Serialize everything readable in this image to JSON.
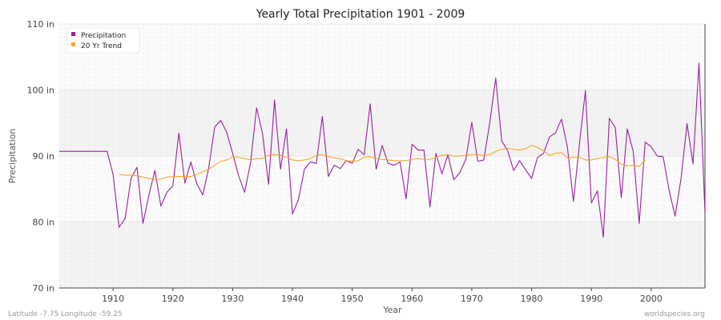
{
  "chart_data": {
    "type": "line",
    "title": "Yearly Total Precipitation 1901 - 2009",
    "xlabel": "Year",
    "ylabel": "Precipitation",
    "xlim": [
      1901,
      2009
    ],
    "ylim": [
      70,
      110
    ],
    "yticks": [
      {
        "value": 70,
        "label": "70 in"
      },
      {
        "value": 80,
        "label": "80 in"
      },
      {
        "value": 90,
        "label": "90 in"
      },
      {
        "value": 100,
        "label": "100 in"
      },
      {
        "value": 110,
        "label": "110 in"
      }
    ],
    "xticks": [
      {
        "value": 1910,
        "label": "1910"
      },
      {
        "value": 1920,
        "label": "1920"
      },
      {
        "value": 1930,
        "label": "1930"
      },
      {
        "value": 1940,
        "label": "1940"
      },
      {
        "value": 1950,
        "label": "1950"
      },
      {
        "value": 1960,
        "label": "1960"
      },
      {
        "value": 1970,
        "label": "1970"
      },
      {
        "value": 1980,
        "label": "1980"
      },
      {
        "value": 1990,
        "label": "1990"
      },
      {
        "value": 2000,
        "label": "2000"
      }
    ],
    "grid": true,
    "legend_position": "top-left",
    "series": [
      {
        "name": "Precipitation",
        "color": "#9b1fa0",
        "x": [
          1901,
          1902,
          1903,
          1904,
          1905,
          1906,
          1907,
          1908,
          1909,
          1910,
          1911,
          1912,
          1913,
          1914,
          1915,
          1916,
          1917,
          1918,
          1919,
          1920,
          1921,
          1922,
          1923,
          1924,
          1925,
          1926,
          1927,
          1928,
          1929,
          1930,
          1931,
          1932,
          1933,
          1934,
          1935,
          1936,
          1937,
          1938,
          1939,
          1940,
          1941,
          1942,
          1943,
          1944,
          1945,
          1946,
          1947,
          1948,
          1949,
          1950,
          1951,
          1952,
          1953,
          1954,
          1955,
          1956,
          1957,
          1958,
          1959,
          1960,
          1961,
          1962,
          1963,
          1964,
          1965,
          1966,
          1967,
          1968,
          1969,
          1970,
          1971,
          1972,
          1973,
          1974,
          1975,
          1976,
          1977,
          1978,
          1979,
          1980,
          1981,
          1982,
          1983,
          1984,
          1985,
          1986,
          1987,
          1988,
          1989,
          1990,
          1991,
          1992,
          1993,
          1994,
          1995,
          1996,
          1997,
          1998,
          1999,
          2000,
          2001,
          2002,
          2003,
          2004,
          2005,
          2006,
          2007,
          2008,
          2009
        ],
        "values": [
          90.7,
          90.7,
          90.7,
          90.7,
          90.7,
          90.7,
          90.7,
          90.7,
          90.7,
          87.2,
          79.2,
          80.5,
          86.6,
          88.3,
          79.8,
          84.1,
          87.8,
          82.4,
          84.5,
          85.5,
          93.5,
          85.9,
          89.1,
          85.8,
          84.1,
          88.2,
          94.4,
          95.4,
          93.6,
          90.4,
          87.0,
          84.5,
          89.0,
          97.3,
          93.4,
          85.7,
          98.5,
          88.0,
          94.1,
          81.2,
          83.4,
          88.0,
          89.1,
          88.9,
          96.0,
          86.9,
          88.6,
          88.1,
          89.3,
          88.9,
          91.0,
          90.2,
          97.9,
          88.0,
          91.6,
          88.9,
          88.6,
          89.1,
          83.5,
          91.8,
          90.9,
          90.9,
          82.3,
          90.4,
          87.3,
          90.2,
          86.4,
          87.5,
          89.5,
          95.1,
          89.2,
          89.4,
          95.0,
          101.8,
          92.3,
          90.8,
          87.8,
          89.3,
          87.9,
          86.6,
          89.8,
          90.4,
          92.9,
          93.5,
          95.6,
          91.3,
          83.1,
          91.8,
          99.9,
          82.9,
          84.7,
          77.7,
          95.7,
          94.3,
          83.7,
          94.1,
          90.7,
          79.8,
          92.1,
          91.4,
          90.0,
          89.9,
          84.8,
          80.9,
          86.6,
          94.9,
          88.8,
          104.1,
          81.4
        ]
      },
      {
        "name": "20 Yr Trend",
        "color": "#f5a623",
        "x": [
          1911,
          1912,
          1913,
          1914,
          1915,
          1916,
          1917,
          1918,
          1919,
          1920,
          1921,
          1922,
          1923,
          1924,
          1925,
          1926,
          1927,
          1928,
          1929,
          1930,
          1931,
          1932,
          1933,
          1934,
          1935,
          1936,
          1937,
          1938,
          1939,
          1940,
          1941,
          1942,
          1943,
          1944,
          1945,
          1946,
          1947,
          1948,
          1949,
          1950,
          1951,
          1952,
          1953,
          1954,
          1955,
          1956,
          1957,
          1958,
          1959,
          1960,
          1961,
          1962,
          1963,
          1964,
          1965,
          1966,
          1967,
          1968,
          1969,
          1970,
          1971,
          1972,
          1973,
          1974,
          1975,
          1976,
          1977,
          1978,
          1979,
          1980,
          1981,
          1982,
          1983,
          1984,
          1985,
          1986,
          1987,
          1988,
          1989,
          1990,
          1991,
          1992,
          1993,
          1994,
          1995,
          1996,
          1997,
          1998,
          1999
        ],
        "values": [
          87.2,
          87.1,
          87.1,
          87.0,
          86.8,
          86.6,
          86.4,
          86.5,
          86.8,
          86.9,
          86.9,
          86.9,
          86.9,
          87.2,
          87.6,
          88.0,
          88.6,
          89.2,
          89.4,
          89.9,
          89.8,
          89.6,
          89.4,
          89.6,
          89.6,
          90.1,
          90.2,
          90.1,
          89.8,
          89.4,
          89.3,
          89.4,
          89.6,
          90.1,
          90.2,
          89.9,
          89.7,
          89.6,
          89.3,
          89.2,
          89.3,
          89.8,
          89.9,
          89.6,
          89.5,
          89.4,
          89.3,
          89.3,
          89.3,
          89.5,
          89.6,
          89.5,
          89.5,
          89.8,
          90.1,
          90.2,
          90.0,
          90.0,
          90.1,
          90.2,
          90.2,
          90.1,
          90.2,
          90.7,
          91.0,
          91.2,
          91.0,
          90.9,
          91.1,
          91.6,
          91.3,
          90.8,
          90.1,
          90.4,
          90.5,
          89.7,
          89.8,
          89.8,
          89.4,
          89.4,
          89.6,
          89.8,
          89.9,
          89.5,
          88.8,
          88.5,
          88.6,
          88.4,
          89.4
        ]
      }
    ]
  },
  "footer": {
    "coordinates": "Latitude -7.75 Longitude -59.25",
    "source": "worldspecies.org"
  }
}
